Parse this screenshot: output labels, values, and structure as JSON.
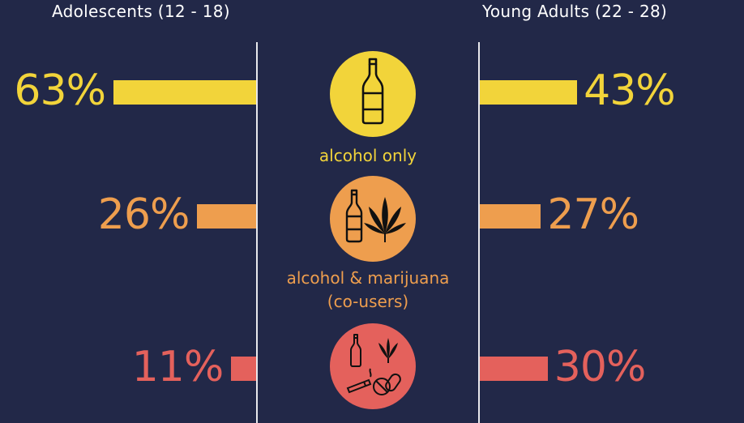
{
  "colors": {
    "background": "#222848",
    "alcohol_only": "#f2d43a",
    "alcohol_marijuana": "#ee9e4e",
    "alcohol_marijuana_other": "#e4615c",
    "text_white": "#ffffff",
    "axis": "#e8e8ec"
  },
  "chart_data": {
    "type": "bar",
    "orientation": "horizontal-mirrored",
    "title": "",
    "groups": [
      "Adolescents (12 - 18)",
      "Young Adults (22 - 28)"
    ],
    "categories": [
      "alcohol only",
      "alcohol & marijuana (co-users)",
      ""
    ],
    "category_lines": [
      [
        "alcohol only"
      ],
      [
        "alcohol & marijuana",
        "(co-users)"
      ],
      []
    ],
    "icons": [
      [
        "bottle-icon"
      ],
      [
        "bottle-icon",
        "marijuana-leaf-icon"
      ],
      [
        "bottle-icon",
        "marijuana-leaf-icon",
        "cigarette-icon",
        "pills-icon"
      ]
    ],
    "series": [
      {
        "name": "Adolescents (12 - 18)",
        "values": [
          63,
          26,
          11
        ],
        "labels": [
          "63%",
          "26%",
          "11%"
        ]
      },
      {
        "name": "Young Adults (22 - 28)",
        "values": [
          43,
          27,
          30
        ],
        "labels": [
          "43%",
          "27%",
          "30%"
        ]
      }
    ],
    "unit": "%",
    "grid": false,
    "legend": "none"
  }
}
